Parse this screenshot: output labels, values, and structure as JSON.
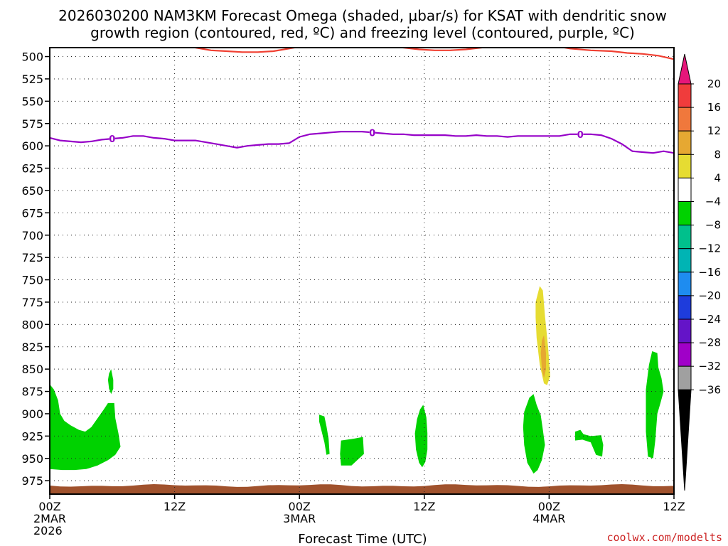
{
  "chart_data": {
    "type": "contour",
    "title_line1": "2026030200 NAM3KM Forecast Omega (shaded, μbar/s) for KSAT with dendritic snow",
    "title_line2": "growth region (contoured, red, ºC) and freezing level (contoured, purple, ºC)",
    "xlabel": "Forecast Time (UTC)",
    "credit": "coolwx.com/modelts",
    "x_range_hours": [
      0,
      60
    ],
    "y_range_hPa": [
      490,
      990
    ],
    "y_ticks": [
      500,
      525,
      550,
      575,
      600,
      625,
      650,
      675,
      700,
      725,
      750,
      775,
      800,
      825,
      850,
      875,
      900,
      925,
      950,
      975
    ],
    "x_ticks": [
      {
        "hour": 0,
        "label": "00Z",
        "sub1": "2MAR",
        "sub2": "2026"
      },
      {
        "hour": 12,
        "label": "12Z",
        "sub1": "",
        "sub2": ""
      },
      {
        "hour": 24,
        "label": "00Z",
        "sub1": "3MAR",
        "sub2": ""
      },
      {
        "hour": 36,
        "label": "12Z",
        "sub1": "",
        "sub2": ""
      },
      {
        "hour": 48,
        "label": "00Z",
        "sub1": "4MAR",
        "sub2": ""
      },
      {
        "hour": 60,
        "label": "12Z",
        "sub1": "",
        "sub2": ""
      }
    ],
    "grid": true,
    "colorbar": {
      "labels": [
        "20",
        "16",
        "12",
        "8",
        "4",
        "−4",
        "−8",
        "−12",
        "−16",
        "−20",
        "−24",
        "−28",
        "−32",
        "−36"
      ],
      "colors": [
        "#f03c3c",
        "#f0783c",
        "#e6a832",
        "#e6dc32",
        "#ffffff",
        "#00d200",
        "#00c08c",
        "#00b4b4",
        "#1e8cf0",
        "#1e3cdc",
        "#6414c8",
        "#a000c8",
        "#a0a0a0"
      ],
      "top_color": "#e6167a",
      "bottom_color": "#000000"
    },
    "freezing_level": {
      "color": "#9600c8",
      "label": "0",
      "label_hours": [
        6.0,
        31.0,
        51.0
      ],
      "points": [
        [
          0,
          591
        ],
        [
          1,
          594
        ],
        [
          2,
          595
        ],
        [
          3,
          596
        ],
        [
          4,
          595
        ],
        [
          5,
          593
        ],
        [
          6,
          592
        ],
        [
          7,
          591
        ],
        [
          8,
          589
        ],
        [
          9,
          589
        ],
        [
          10,
          591
        ],
        [
          11,
          592
        ],
        [
          12,
          594
        ],
        [
          13,
          594
        ],
        [
          14,
          594
        ],
        [
          15,
          596
        ],
        [
          16,
          598
        ],
        [
          17,
          600
        ],
        [
          18,
          602
        ],
        [
          19,
          600
        ],
        [
          20,
          599
        ],
        [
          21,
          598
        ],
        [
          22,
          598
        ],
        [
          23,
          597
        ],
        [
          24,
          590
        ],
        [
          25,
          587
        ],
        [
          26,
          586
        ],
        [
          27,
          585
        ],
        [
          28,
          584
        ],
        [
          29,
          584
        ],
        [
          30,
          584
        ],
        [
          31,
          585
        ],
        [
          32,
          586
        ],
        [
          33,
          587
        ],
        [
          34,
          587
        ],
        [
          35,
          588
        ],
        [
          36,
          588
        ],
        [
          37,
          588
        ],
        [
          38,
          588
        ],
        [
          39,
          589
        ],
        [
          40,
          589
        ],
        [
          41,
          588
        ],
        [
          42,
          589
        ],
        [
          43,
          589
        ],
        [
          44,
          590
        ],
        [
          45,
          589
        ],
        [
          46,
          589
        ],
        [
          47,
          589
        ],
        [
          48,
          589
        ],
        [
          49,
          589
        ],
        [
          50,
          587
        ],
        [
          51,
          587
        ],
        [
          52,
          587
        ],
        [
          53,
          588
        ],
        [
          54,
          592
        ],
        [
          55,
          598
        ],
        [
          56,
          606
        ],
        [
          57,
          607
        ],
        [
          58,
          608
        ],
        [
          59,
          606
        ],
        [
          60,
          608
        ]
      ]
    },
    "dgz_contour": {
      "color": "#f04032",
      "segments": [
        [
          [
            14.0,
            490
          ],
          [
            15.5,
            493
          ],
          [
            17.0,
            494
          ],
          [
            18.5,
            495
          ],
          [
            20.0,
            495
          ],
          [
            21.5,
            494
          ],
          [
            23.0,
            491
          ],
          [
            24.5,
            488
          ]
        ],
        [
          [
            32.5,
            488
          ],
          [
            34.0,
            490
          ],
          [
            35.5,
            492
          ],
          [
            37.0,
            493
          ],
          [
            38.5,
            493
          ],
          [
            40.0,
            492
          ],
          [
            41.5,
            490
          ],
          [
            43.0,
            487
          ]
        ],
        [
          [
            48.0,
            487
          ],
          [
            50.0,
            491
          ],
          [
            52.0,
            493
          ],
          [
            54.0,
            494
          ],
          [
            55.5,
            496
          ],
          [
            57.0,
            497
          ],
          [
            58.5,
            499
          ],
          [
            60.0,
            503
          ]
        ]
      ]
    },
    "omega_regions": [
      {
        "color": "#00d200",
        "points": [
          [
            0,
            867
          ],
          [
            0.4,
            873
          ],
          [
            0.8,
            885
          ],
          [
            1.0,
            900
          ],
          [
            1.4,
            908
          ],
          [
            2.0,
            913
          ],
          [
            2.8,
            918
          ],
          [
            3.4,
            920
          ],
          [
            4.0,
            915
          ],
          [
            4.6,
            905
          ],
          [
            5.2,
            895
          ],
          [
            5.6,
            888
          ],
          [
            6.2,
            888
          ],
          [
            6.3,
            905
          ],
          [
            6.6,
            922
          ],
          [
            6.8,
            937
          ],
          [
            6.3,
            946
          ],
          [
            5.6,
            952
          ],
          [
            4.6,
            958
          ],
          [
            3.5,
            962
          ],
          [
            2.4,
            963
          ],
          [
            1.2,
            963
          ],
          [
            0,
            962
          ]
        ]
      },
      {
        "color": "#00d200",
        "points": [
          [
            5.7,
            855
          ],
          [
            5.9,
            850
          ],
          [
            6.1,
            862
          ],
          [
            6.1,
            872
          ],
          [
            5.9,
            878
          ],
          [
            5.7,
            872
          ],
          [
            5.6,
            862
          ]
        ]
      },
      {
        "color": "#00d200",
        "points": [
          [
            25.9,
            901
          ],
          [
            26.4,
            903
          ],
          [
            26.6,
            914
          ],
          [
            26.8,
            928
          ],
          [
            26.9,
            945
          ],
          [
            26.6,
            946
          ],
          [
            26.4,
            932
          ],
          [
            26.1,
            918
          ],
          [
            25.9,
            909
          ]
        ]
      },
      {
        "color": "#00d200",
        "points": [
          [
            28.0,
            930
          ],
          [
            29.2,
            928
          ],
          [
            30.1,
            926
          ],
          [
            30.2,
            945
          ],
          [
            29.0,
            958
          ],
          [
            28.0,
            958
          ],
          [
            27.9,
            945
          ]
        ]
      },
      {
        "color": "#00d200",
        "points": [
          [
            35.6,
            895
          ],
          [
            35.9,
            890
          ],
          [
            36.2,
            904
          ],
          [
            36.3,
            922
          ],
          [
            36.3,
            940
          ],
          [
            36.1,
            954
          ],
          [
            35.8,
            960
          ],
          [
            35.5,
            955
          ],
          [
            35.2,
            940
          ],
          [
            35.1,
            922
          ],
          [
            35.3,
            906
          ]
        ]
      },
      {
        "color": "#00d200",
        "points": [
          [
            45.6,
            898
          ],
          [
            46.1,
            882
          ],
          [
            46.5,
            878
          ],
          [
            46.8,
            890
          ],
          [
            47.2,
            902
          ],
          [
            47.4,
            918
          ],
          [
            47.6,
            935
          ],
          [
            47.3,
            952
          ],
          [
            46.9,
            963
          ],
          [
            46.5,
            967
          ],
          [
            45.9,
            955
          ],
          [
            45.6,
            935
          ],
          [
            45.5,
            915
          ]
        ]
      },
      {
        "color": "#00d200",
        "points": [
          [
            50.5,
            920
          ],
          [
            51.0,
            918
          ],
          [
            51.3,
            923
          ],
          [
            52.0,
            925
          ],
          [
            53.0,
            924
          ],
          [
            53.2,
            935
          ],
          [
            53.1,
            948
          ],
          [
            52.5,
            946
          ],
          [
            52.0,
            932
          ],
          [
            51.2,
            929
          ],
          [
            50.5,
            930
          ]
        ]
      },
      {
        "color": "#00d200",
        "points": [
          [
            57.3,
            873
          ],
          [
            57.6,
            845
          ],
          [
            57.9,
            830
          ],
          [
            58.4,
            832
          ],
          [
            58.5,
            848
          ],
          [
            58.8,
            860
          ],
          [
            59.0,
            875
          ],
          [
            58.7,
            888
          ],
          [
            58.4,
            900
          ],
          [
            58.2,
            930
          ],
          [
            58.0,
            950
          ],
          [
            57.5,
            948
          ],
          [
            57.3,
            920
          ],
          [
            57.3,
            895
          ]
        ]
      },
      {
        "color": "#e6dc32",
        "points": [
          [
            46.7,
            775
          ],
          [
            47.1,
            757
          ],
          [
            47.4,
            762
          ],
          [
            47.6,
            790
          ],
          [
            47.9,
            825
          ],
          [
            48.1,
            858
          ],
          [
            47.8,
            868
          ],
          [
            47.5,
            866
          ],
          [
            47.1,
            845
          ],
          [
            46.8,
            815
          ],
          [
            46.7,
            792
          ]
        ]
      },
      {
        "color": "#e6a832",
        "points": [
          [
            47.3,
            818
          ],
          [
            47.5,
            812
          ],
          [
            47.7,
            832
          ],
          [
            47.7,
            850
          ],
          [
            47.5,
            860
          ],
          [
            47.3,
            850
          ],
          [
            47.2,
            832
          ]
        ]
      }
    ],
    "ground": {
      "color": "#a0522d",
      "top_hPa": 982
    },
    "omega_units": "μbar/s"
  }
}
